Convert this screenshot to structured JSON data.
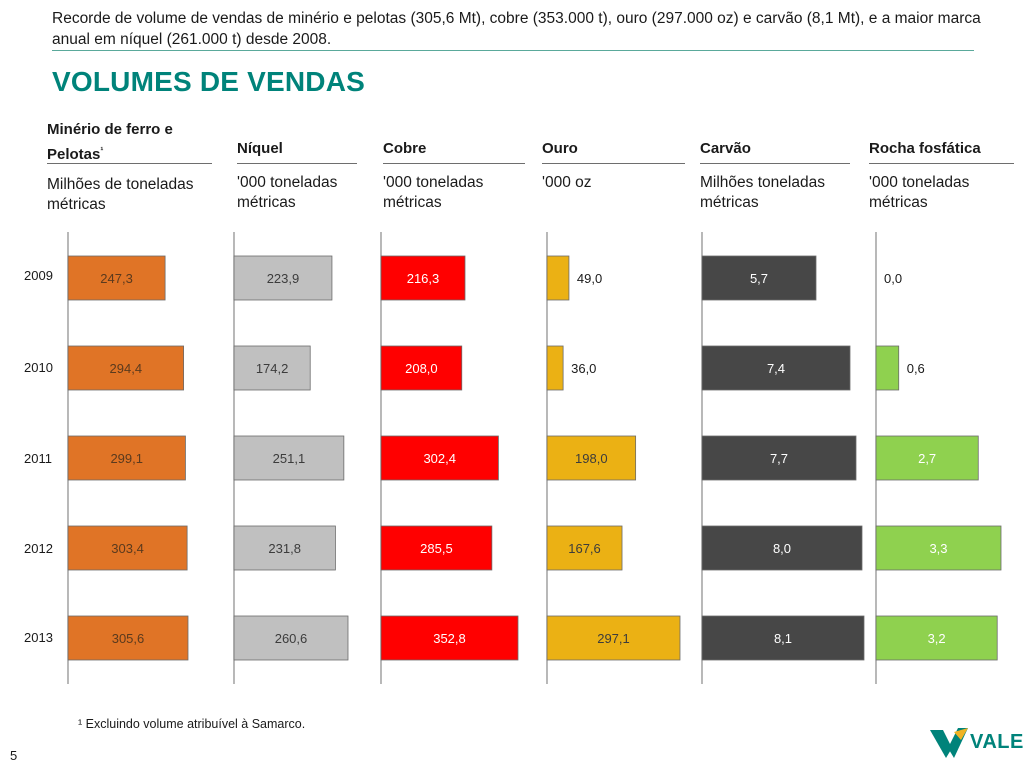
{
  "header": {
    "subtitle": "Recorde de volume de vendas de minério e pelotas (305,6 Mt), cobre (353.000 t), ouro (297.000 oz) e carvão (8,1 Mt), e a maior marca anual em níquel (261.000 t) desde 2008.",
    "title": "VOLUMES DE VENDAS"
  },
  "years": [
    "2009",
    "2010",
    "2011",
    "2012",
    "2013"
  ],
  "chart_data": [
    {
      "type": "bar",
      "title": "Minério de ferro e Pelotas¹",
      "unit": "Milhões de toneladas métricas",
      "categories": [
        "2009",
        "2010",
        "2011",
        "2012",
        "2013"
      ],
      "values": [
        247.3,
        294.4,
        299.1,
        303.4,
        305.6
      ],
      "labels": [
        "247,3",
        "294,4",
        "299,1",
        "303,4",
        "305,6"
      ],
      "color": "#e07426",
      "label_color": "#5a3a1e"
    },
    {
      "type": "bar",
      "title": "Níquel",
      "unit": "'000 toneladas métricas",
      "categories": [
        "2009",
        "2010",
        "2011",
        "2012",
        "2013"
      ],
      "values": [
        223.9,
        174.2,
        251.1,
        231.8,
        260.6
      ],
      "labels": [
        "223,9",
        "174,2",
        "251,1",
        "231,8",
        "260,6"
      ],
      "color": "#c0c0c0",
      "label_color": "#3c3c3c"
    },
    {
      "type": "bar",
      "title": "Cobre",
      "unit": "'000 toneladas métricas",
      "categories": [
        "2009",
        "2010",
        "2011",
        "2012",
        "2013"
      ],
      "values": [
        216.3,
        208.0,
        302.4,
        285.5,
        352.8
      ],
      "labels": [
        "216,3",
        "208,0",
        "302,4",
        "285,5",
        "352,8"
      ],
      "color": "#ff0000",
      "label_color": "#ffffff"
    },
    {
      "type": "bar",
      "title": "Ouro",
      "unit": "'000 oz",
      "categories": [
        "2009",
        "2010",
        "2011",
        "2012",
        "2013"
      ],
      "values": [
        49.0,
        36.0,
        198.0,
        167.6,
        297.1
      ],
      "labels": [
        "49,0",
        "36,0",
        "198,0",
        "167,6",
        "297,1"
      ],
      "color": "#ebb114",
      "label_color": "#3c3c3c"
    },
    {
      "type": "bar",
      "title": "Carvão",
      "unit": "Milhões toneladas métricas",
      "categories": [
        "2009",
        "2010",
        "2011",
        "2012",
        "2013"
      ],
      "values": [
        5.7,
        7.4,
        7.7,
        8.0,
        8.1
      ],
      "labels": [
        "5,7",
        "7,4",
        "7,7",
        "8,0",
        "8,1"
      ],
      "color": "#474747",
      "label_color": "#ffffff"
    },
    {
      "type": "bar",
      "title": "Rocha fosfática",
      "unit": "'000 toneladas métricas",
      "categories": [
        "2009",
        "2010",
        "2011",
        "2012",
        "2013"
      ],
      "values": [
        0.0,
        0.6,
        2.7,
        3.3,
        3.2
      ],
      "labels": [
        "0,0",
        "0,6",
        "2,7",
        "3,3",
        "3,2"
      ],
      "color": "#8fd14f",
      "label_color": "#ffffff"
    }
  ],
  "footnote": "¹ Excluindo volume atribuível à Samarco.",
  "page_number": "5",
  "logo": {
    "text": "VALE",
    "colors": [
      "#00837a",
      "#f0b323"
    ]
  }
}
